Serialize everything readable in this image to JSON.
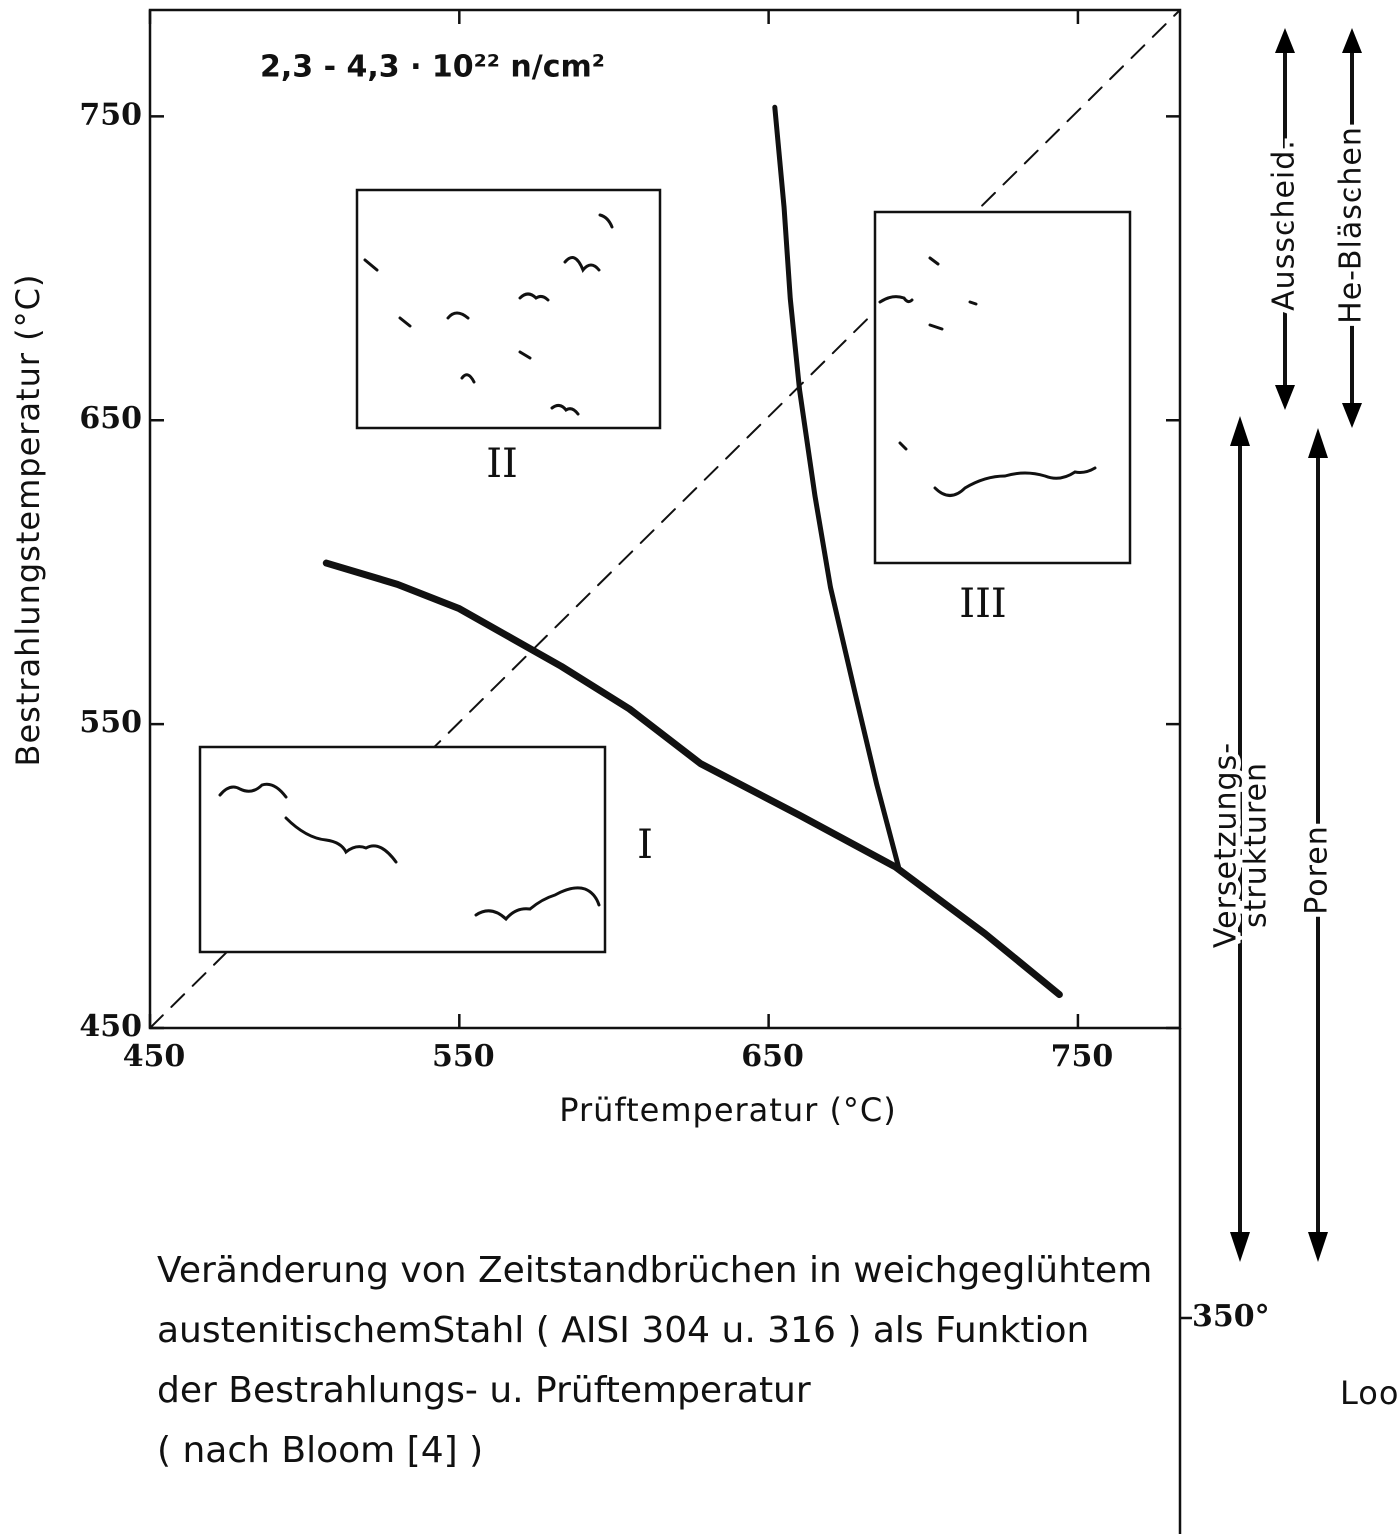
{
  "chart_data": {
    "type": "line",
    "fluence": "2,3 - 4,3 · 10²² n/cm²",
    "x_label": "Prüftemperatur (°C)",
    "y_label": "Bestrahlungstemperatur (°C)",
    "xlim": [
      450,
      783
    ],
    "ylim": [
      450,
      785
    ],
    "xticks": [
      450,
      550,
      650,
      750
    ],
    "yticks": [
      450,
      550,
      650,
      750
    ],
    "series": [
      {
        "color": "#111111",
        "style": "dashed",
        "linewidth": 2,
        "x": [
          450,
          783
        ],
        "values": [
          450,
          785
        ]
      },
      {
        "color": "#111111",
        "style": "solid",
        "linewidth": 7,
        "x": [
          507,
          530,
          550,
          583,
          605,
          628,
          660,
          691,
          720,
          744
        ],
        "values": [
          603,
          596,
          588,
          569,
          555,
          537,
          520,
          503,
          481,
          461
        ]
      },
      {
        "color": "#111111",
        "style": "solid",
        "linewidth": 5,
        "x": [
          652,
          655,
          657,
          660,
          665,
          670,
          678,
          685,
          692
        ],
        "values": [
          753,
          720,
          690,
          660,
          625,
          595,
          560,
          530,
          503
        ]
      }
    ],
    "inset_labels": [
      "I",
      "II",
      "III"
    ],
    "side_labels": {
      "precipitates": "Ausscheid.",
      "bubbles": "He-Bläschen",
      "dislocations": [
        "Versetzungs-",
        "strukturen"
      ],
      "voids": "Poren",
      "threshold": "350°",
      "loops": "Loops"
    },
    "caption": [
      "Veränderung von Zeitstandbrüchen in weichgeglühtem",
      "austenitischemStahl ( AISI 304 u. 316 ) als Funktion",
      "der Bestrahlungs- u. Prüftemperatur",
      "( nach Bloom [4] )"
    ]
  }
}
